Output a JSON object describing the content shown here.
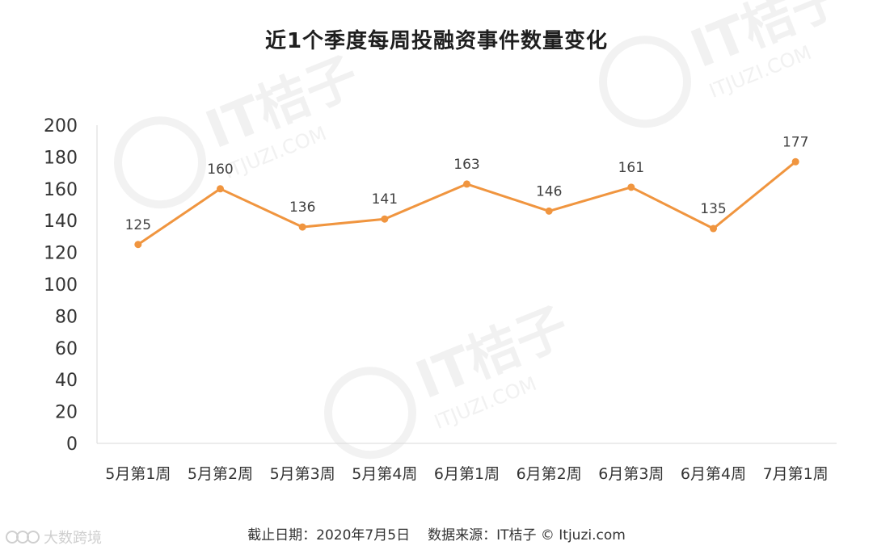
{
  "chart_data": {
    "type": "line",
    "title": "近1个季度每周投融资事件数量变化",
    "categories": [
      "5月第1周",
      "5月第2周",
      "5月第3周",
      "5月第4周",
      "6月第1周",
      "6月第2周",
      "6月第3周",
      "6月第4周",
      "7月第1周"
    ],
    "series": [
      {
        "values": [
          125,
          160,
          136,
          141,
          163,
          146,
          161,
          135,
          177
        ]
      }
    ],
    "yticks": [
      "0",
      "20",
      "40",
      "60",
      "80",
      "100",
      "120",
      "140",
      "160",
      "180",
      "200"
    ],
    "ylim": [
      0,
      200
    ],
    "grid": false,
    "legend": "none",
    "color": "#F0953F"
  },
  "footer": {
    "date_text": "截止日期：2020年7月5日",
    "source_text": "数据来源：IT桔子 © Itjuzi.com"
  },
  "watermark": {
    "brand": "IT桔子",
    "url": "ITJUZI.COM"
  },
  "corner_brand": {
    "text": "大数跨境"
  }
}
